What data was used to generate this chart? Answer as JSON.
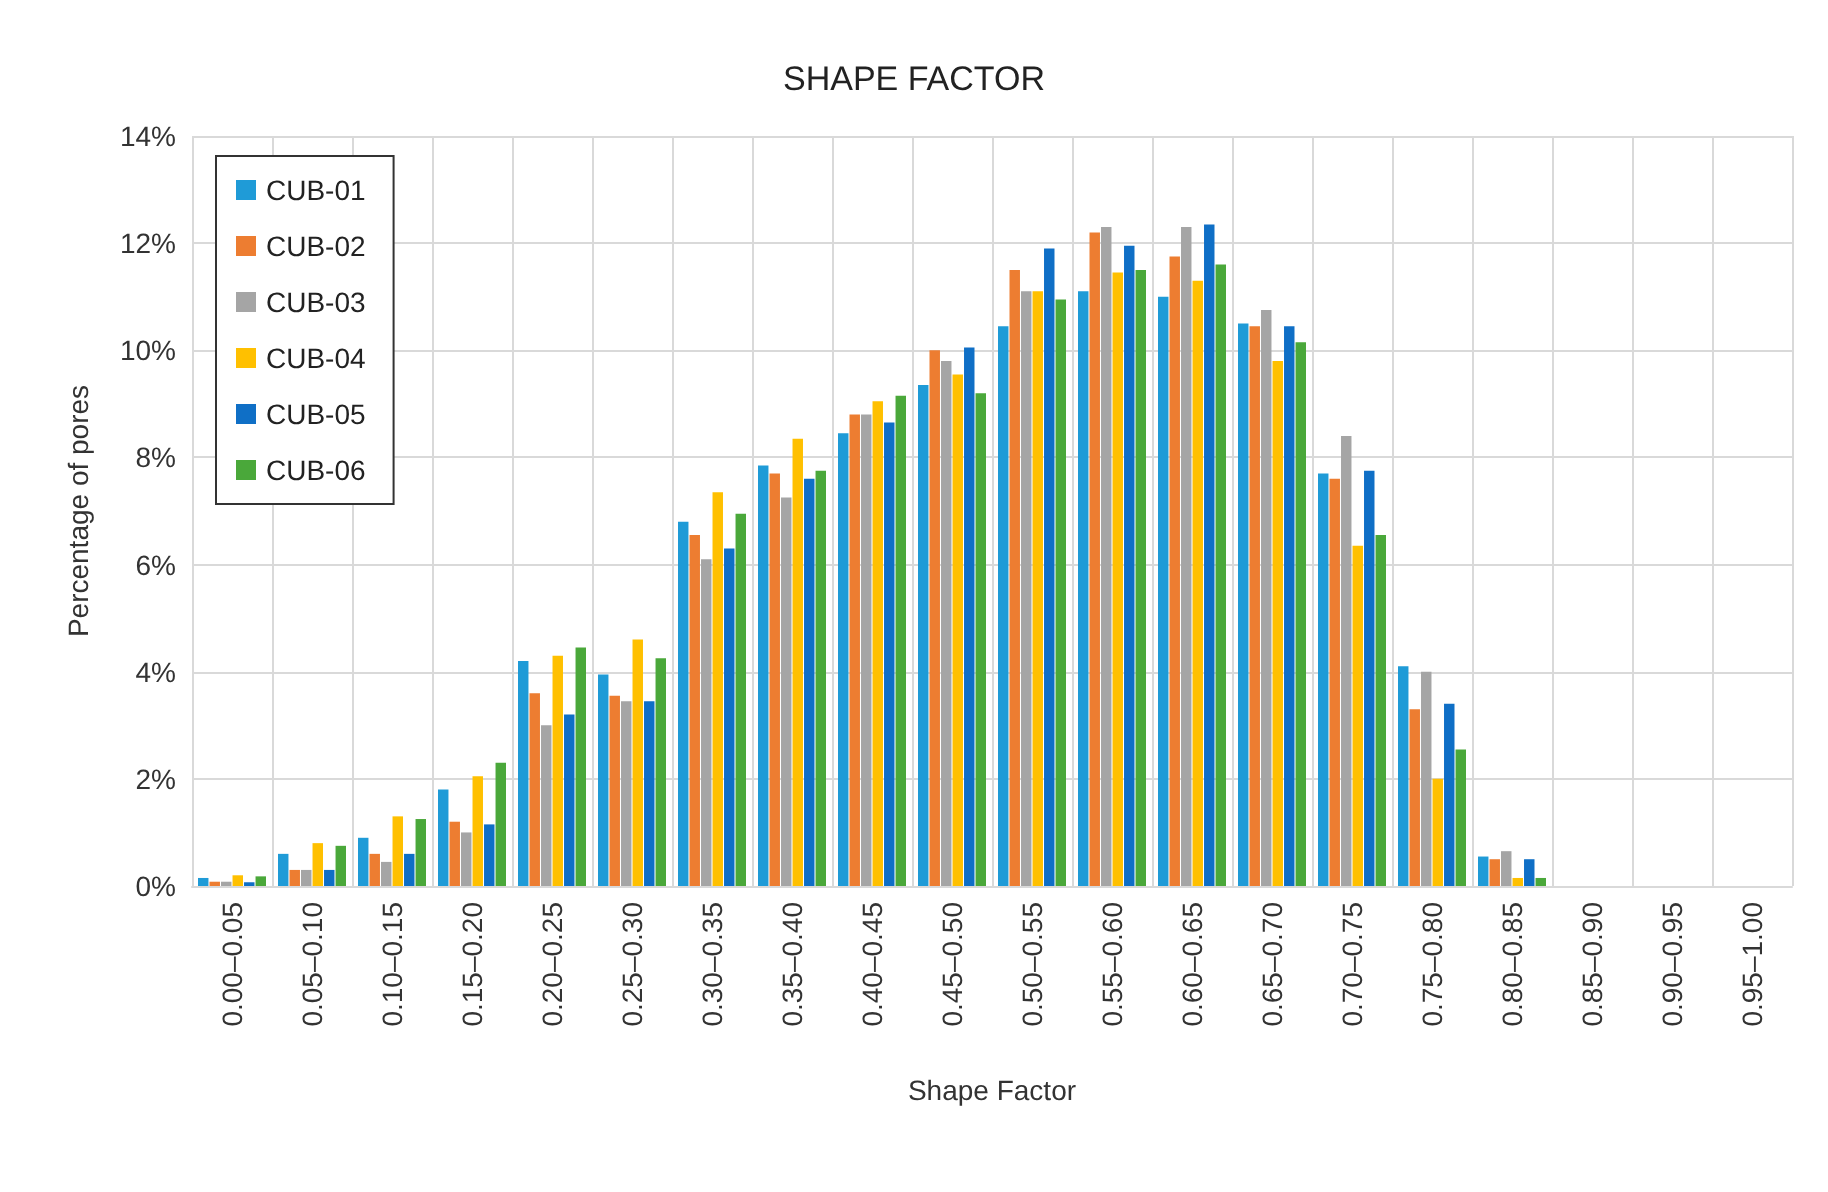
{
  "chart_data": {
    "type": "bar",
    "title": "SHAPE FACTOR",
    "xlabel": "Shape Factor",
    "ylabel": "Percentage of pores",
    "categories": [
      "0.00–0.05",
      "0.05–0.10",
      "0.10–0.15",
      "0.15–0.20",
      "0.20–0.25",
      "0.25–0.30",
      "0.30–0.35",
      "0.35–0.40",
      "0.40–0.45",
      "0.45–0.50",
      "0.50–0.55",
      "0.55–0.60",
      "0.60–0.65",
      "0.65–0.70",
      "0.70–0.75",
      "0.75–0.80",
      "0.80–0.85",
      "0.85–0.90",
      "0.90–0.95",
      "0.95–1.00"
    ],
    "series": [
      {
        "name": "CUB-01",
        "color": "#1f9bd7",
        "values": [
          0.15,
          0.6,
          0.9,
          1.8,
          4.2,
          3.95,
          6.8,
          7.85,
          8.45,
          9.35,
          10.45,
          11.1,
          11.0,
          10.5,
          7.7,
          4.1,
          0.55,
          0,
          0,
          0
        ]
      },
      {
        "name": "CUB-02",
        "color": "#ed7d31",
        "values": [
          0.08,
          0.3,
          0.6,
          1.2,
          3.6,
          3.55,
          6.55,
          7.7,
          8.8,
          10.0,
          11.5,
          12.2,
          11.75,
          10.45,
          7.6,
          3.3,
          0.5,
          0,
          0,
          0
        ]
      },
      {
        "name": "CUB-03",
        "color": "#a5a5a5",
        "values": [
          0.08,
          0.3,
          0.45,
          1.0,
          3.0,
          3.45,
          6.1,
          7.25,
          8.8,
          9.8,
          11.1,
          12.3,
          12.3,
          10.75,
          8.4,
          4.0,
          0.65,
          0,
          0,
          0
        ]
      },
      {
        "name": "CUB-04",
        "color": "#ffc000",
        "values": [
          0.2,
          0.8,
          1.3,
          2.05,
          4.3,
          4.6,
          7.35,
          8.35,
          9.05,
          9.55,
          11.1,
          11.45,
          11.3,
          9.8,
          6.35,
          2.0,
          0.15,
          0,
          0,
          0
        ]
      },
      {
        "name": "CUB-05",
        "color": "#0f6fc6",
        "values": [
          0.07,
          0.3,
          0.6,
          1.15,
          3.2,
          3.45,
          6.3,
          7.6,
          8.65,
          10.05,
          11.9,
          11.95,
          12.35,
          10.45,
          7.75,
          3.4,
          0.5,
          0,
          0,
          0
        ]
      },
      {
        "name": "CUB-06",
        "color": "#4aa83a",
        "values": [
          0.18,
          0.75,
          1.25,
          2.3,
          4.45,
          4.25,
          6.95,
          7.75,
          9.15,
          9.2,
          10.95,
          11.5,
          11.6,
          10.15,
          6.55,
          2.55,
          0.15,
          0,
          0,
          0
        ]
      }
    ],
    "ylim": [
      0,
      14
    ],
    "yticks": [
      {
        "value": 0,
        "label": "0%"
      },
      {
        "value": 2,
        "label": "2%"
      },
      {
        "value": 4,
        "label": "4%"
      },
      {
        "value": 6,
        "label": "6%"
      },
      {
        "value": 8,
        "label": "8%"
      },
      {
        "value": 10,
        "label": "10%"
      },
      {
        "value": 12,
        "label": "12%"
      },
      {
        "value": 14,
        "label": "14%"
      }
    ],
    "grid": true,
    "legend": "top left"
  }
}
